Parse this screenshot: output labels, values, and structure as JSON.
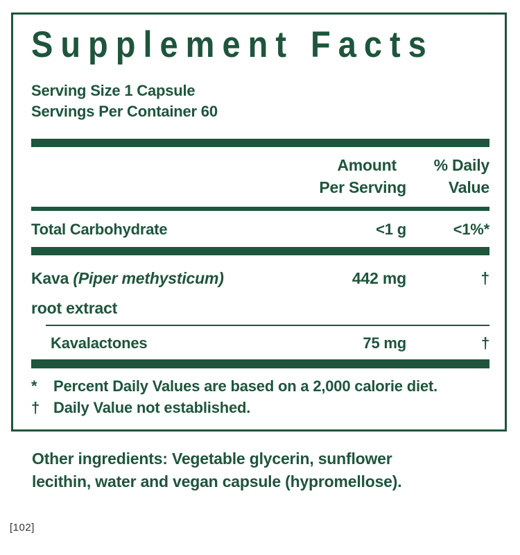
{
  "colors": {
    "green": "#1e553c"
  },
  "panel": {
    "title": "Supplement Facts",
    "serving_size": "Serving Size 1 Capsule",
    "servings_per_container": "Servings Per Container 60",
    "columns": {
      "amount_line1": "Amount",
      "amount_line2": "Per Serving",
      "dv_line1": "% Daily",
      "dv_line2": "Value"
    },
    "rows": [
      {
        "name": "Total Carbohydrate",
        "amount": "<1 g",
        "dv": "<1%*"
      },
      {
        "name_full": "Kava (Piper methysticum) root extract",
        "name_start": "Kava ",
        "name_italic": "(Piper methysticum)",
        "name_line2": "root extract",
        "amount": "442 mg",
        "dv": "†"
      },
      {
        "name": "Kavalactones",
        "amount": "75 mg",
        "dv": "†",
        "indented": true
      }
    ],
    "footnotes": [
      {
        "symbol": "*",
        "text": "Percent Daily Values are based on a 2,000 calorie diet."
      },
      {
        "symbol": "†",
        "text": "Daily Value not established."
      }
    ]
  },
  "other_ingredients": {
    "full": "Other ingredients: Vegetable glycerin, sunflower lecithin, water and vegan capsule (hypromellose).",
    "line1": "Other ingredients: Vegetable glycerin, sunflower",
    "line2": "lecithin, water and vegan capsule (hypromellose)."
  },
  "reference": "[102]"
}
